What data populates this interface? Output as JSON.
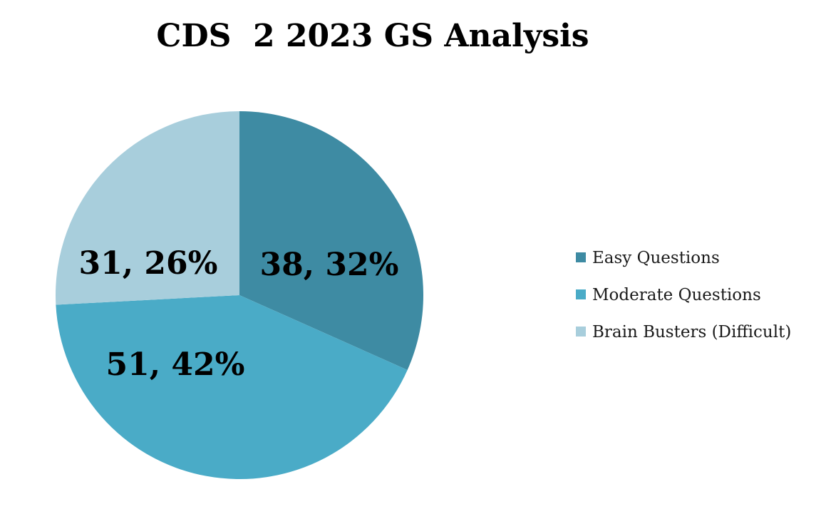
{
  "chart_data": {
    "type": "pie",
    "title": "CDS  2 2023 GS Analysis",
    "categories": [
      "Easy Questions",
      "Moderate Questions",
      "Brain Busters (Difficult)"
    ],
    "values": [
      38,
      51,
      31
    ],
    "percentages": [
      "32%",
      "42%",
      "26%"
    ],
    "data_labels": [
      "38, 32%",
      "51, 42%",
      "31, 26%"
    ],
    "colors": [
      "#3e8ba3",
      "#4aabc7",
      "#a8cedc"
    ],
    "legend_position": "right",
    "start_angle": "12 o'clock",
    "direction": "clockwise"
  }
}
